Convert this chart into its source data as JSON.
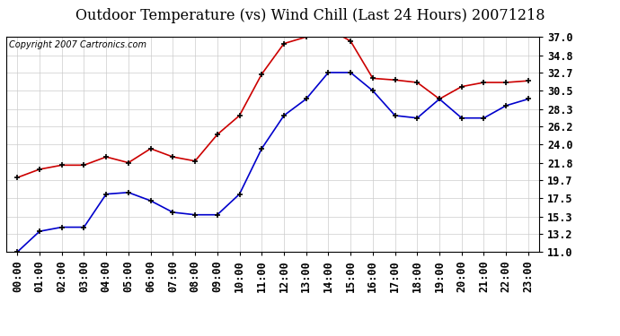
{
  "title": "Outdoor Temperature (vs) Wind Chill (Last 24 Hours) 20071218",
  "copyright_text": "Copyright 2007 Cartronics.com",
  "hours": [
    "00:00",
    "01:00",
    "02:00",
    "03:00",
    "04:00",
    "05:00",
    "06:00",
    "07:00",
    "08:00",
    "09:00",
    "10:00",
    "11:00",
    "12:00",
    "13:00",
    "14:00",
    "15:00",
    "16:00",
    "17:00",
    "18:00",
    "19:00",
    "20:00",
    "21:00",
    "22:00",
    "23:00"
  ],
  "temp": [
    20.0,
    21.0,
    21.5,
    21.5,
    22.5,
    21.8,
    23.5,
    22.5,
    22.0,
    25.2,
    27.5,
    32.5,
    36.2,
    37.0,
    38.0,
    36.5,
    32.0,
    31.8,
    31.5,
    29.5,
    31.0,
    31.5,
    31.5,
    31.7
  ],
  "wind_chill": [
    11.0,
    13.5,
    14.0,
    14.0,
    18.0,
    18.2,
    17.2,
    15.8,
    15.5,
    15.5,
    18.0,
    23.5,
    27.5,
    29.5,
    32.7,
    32.7,
    30.5,
    27.5,
    27.2,
    29.5,
    27.2,
    27.2,
    28.7,
    29.5
  ],
  "ylim": [
    11.0,
    37.0
  ],
  "yticks": [
    11.0,
    13.2,
    15.3,
    17.5,
    19.7,
    21.8,
    24.0,
    26.2,
    28.3,
    30.5,
    32.7,
    34.8,
    37.0
  ],
  "temp_color": "#cc0000",
  "wind_chill_color": "#0000cc",
  "bg_color": "#ffffff",
  "grid_color": "#cccccc",
  "title_fontsize": 11.5,
  "copyright_fontsize": 7,
  "tick_fontsize": 8.5
}
